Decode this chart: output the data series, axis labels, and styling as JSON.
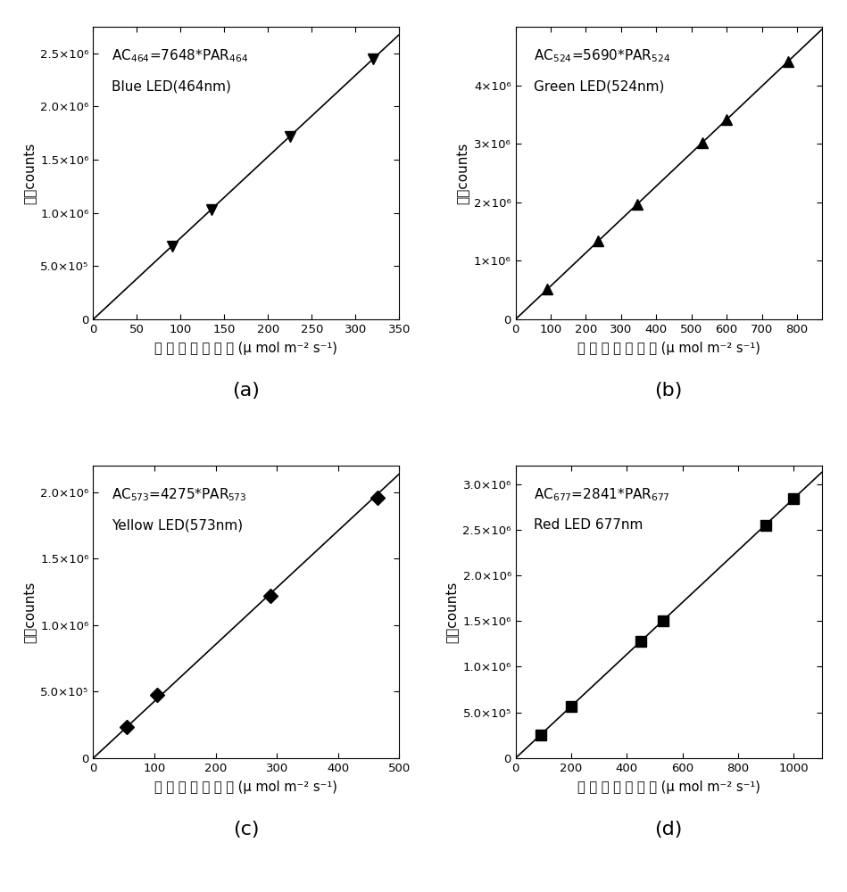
{
  "panels": [
    {
      "label": "(a)",
      "equation_sub": "464",
      "slope": 7648,
      "led_label": "Blue LED(464nm)",
      "x_data": [
        90,
        135,
        225,
        320
      ],
      "y_data": [
        688320,
        1032480,
        1720800,
        2447360
      ],
      "xlim": [
        0,
        350
      ],
      "ylim": [
        0,
        2750000
      ],
      "xticks": [
        0,
        50,
        100,
        150,
        200,
        250,
        300,
        350
      ],
      "ytick_vals": [
        0,
        500000,
        1000000,
        1500000,
        2000000,
        2500000
      ],
      "ytick_labels": [
        "0",
        "5.0×10⁵",
        "1.0×10⁶",
        "1.5×10⁶",
        "2.0×10⁶",
        "2.5×10⁶"
      ],
      "marker": "v",
      "marker_size": 9
    },
    {
      "label": "(b)",
      "equation_sub": "524",
      "slope": 5690,
      "led_label": "Green LED(524nm)",
      "x_data": [
        90,
        235,
        345,
        530,
        600,
        775
      ],
      "y_data": [
        512100,
        1337150,
        1964050,
        3015700,
        3413400,
        4409750
      ],
      "xlim": [
        0,
        870
      ],
      "ylim": [
        0,
        5000000
      ],
      "xticks": [
        0,
        100,
        200,
        300,
        400,
        500,
        600,
        700,
        800
      ],
      "ytick_vals": [
        0,
        1000000,
        2000000,
        3000000,
        4000000
      ],
      "ytick_labels": [
        "0",
        "1×10⁶",
        "2×10⁶",
        "3×10⁶",
        "4×10⁶"
      ],
      "marker": "^",
      "marker_size": 9
    },
    {
      "label": "(c)",
      "equation_sub": "573",
      "slope": 4275,
      "led_label": "Yellow LED(573nm)",
      "x_data": [
        55,
        105,
        290,
        465
      ],
      "y_data": [
        234000,
        475000,
        1220000,
        1960000
      ],
      "xlim": [
        0,
        500
      ],
      "ylim": [
        0,
        2200000
      ],
      "xticks": [
        0,
        100,
        200,
        300,
        400,
        500
      ],
      "ytick_vals": [
        0,
        500000,
        1000000,
        1500000,
        2000000
      ],
      "ytick_labels": [
        "0",
        "5.0×10⁵",
        "1.0×10⁶",
        "1.5×10⁶",
        "2.0×10⁶"
      ],
      "marker": "D",
      "marker_size": 8
    },
    {
      "label": "(d)",
      "equation_sub": "677",
      "slope": 2841,
      "led_label": "Red LED 677nm",
      "x_data": [
        90,
        200,
        450,
        530,
        900,
        1000
      ],
      "y_data": [
        255690,
        567800,
        1280000,
        1506000,
        2550000,
        2840000
      ],
      "xlim": [
        0,
        1100
      ],
      "ylim": [
        0,
        3200000
      ],
      "xticks": [
        0,
        200,
        400,
        600,
        800,
        1000
      ],
      "ytick_vals": [
        0,
        500000,
        1000000,
        1500000,
        2000000,
        2500000,
        3000000
      ],
      "ytick_labels": [
        "0",
        "5.0×10⁵",
        "1.0×10⁶",
        "1.5×10⁶",
        "2.0×10⁶",
        "2.5×10⁶",
        "3.0×10⁶"
      ],
      "marker": "s",
      "marker_size": 8
    }
  ],
  "ylabel_chinese": "累积counts",
  "xlabel_chinese": "光 量 子 通 量 密 度",
  "xlabel_units": " (μ mol m⁻² s⁻¹)",
  "background_color": "#ffffff"
}
